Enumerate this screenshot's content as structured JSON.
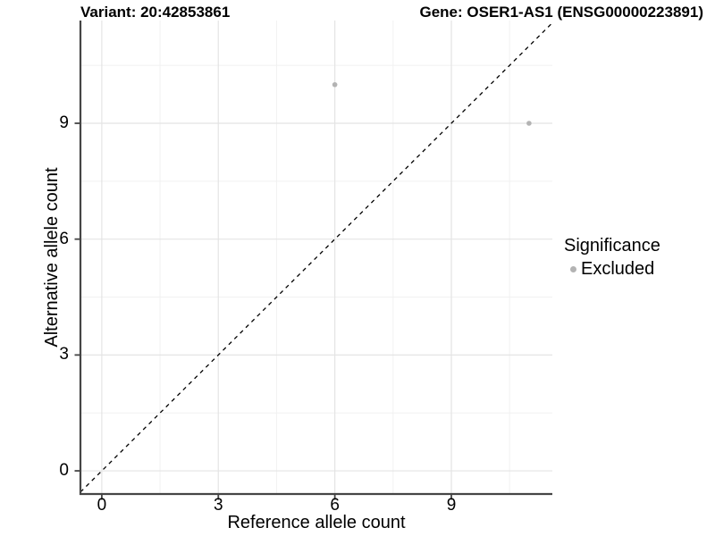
{
  "header": {
    "title_left": "Variant: 20:42853861",
    "title_right": "Gene: OSER1-AS1 (ENSG00000223891)"
  },
  "axes": {
    "x_label": "Reference allele count",
    "y_label": "Alternative allele count"
  },
  "legend": {
    "title": "Significance",
    "entries": [
      {
        "label": "Excluded",
        "color": "#b3b3b3"
      }
    ],
    "position": "right"
  },
  "chart_data": {
    "type": "scatter",
    "title_left": "Variant: 20:42853861",
    "title_right": "Gene: OSER1-AS1 (ENSG00000223891)",
    "xlabel": "Reference allele count",
    "ylabel": "Alternative allele count",
    "xlim": [
      -0.55,
      11.6
    ],
    "ylim": [
      -0.6,
      11.66
    ],
    "x_ticks": [
      0,
      3,
      6,
      9
    ],
    "y_ticks": [
      0,
      3,
      6,
      9
    ],
    "x_minor_ticks": [
      1.5,
      4.5,
      7.5,
      10.5
    ],
    "y_minor_ticks": [
      1.5,
      4.5,
      7.5,
      10.5
    ],
    "grid": true,
    "identity_line": {
      "slope": 1,
      "intercept": 0,
      "style": "dashed",
      "color": "#000000"
    },
    "series": [
      {
        "name": "Excluded",
        "color": "#b3b3b3",
        "points": [
          {
            "x": 6,
            "y": 10
          },
          {
            "x": 11,
            "y": 9
          }
        ]
      }
    ],
    "colors": {
      "axis_line": "#454545",
      "tick_mark": "#454545",
      "grid_major": "#e4e4e4",
      "grid_minor": "#f1f1f1",
      "point": "#b3b3b3",
      "text": "#000000"
    }
  }
}
